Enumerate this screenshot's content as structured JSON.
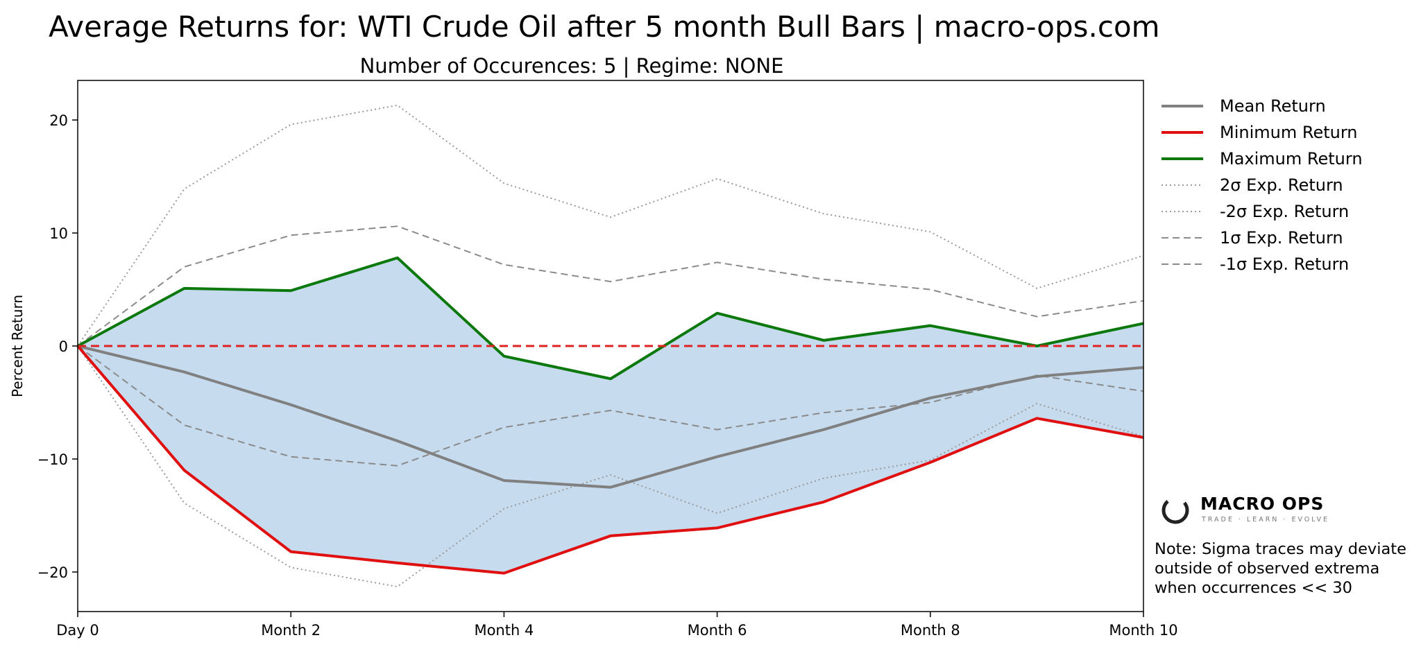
{
  "chart_data": {
    "type": "line",
    "title": "Average Returns for: WTI Crude Oil after 5 month Bull Bars | macro-ops.com",
    "subtitle": "Number of Occurences: 5 | Regime: NONE",
    "ylabel": "Percent Return",
    "xlabel": "",
    "x": [
      0,
      1,
      2,
      3,
      4,
      5,
      6,
      7,
      8,
      9,
      10
    ],
    "xticks": [
      0,
      2,
      4,
      6,
      8,
      10
    ],
    "xticklabels": [
      "Day 0",
      "Month 2",
      "Month 4",
      "Month 6",
      "Month 8",
      "Month 10"
    ],
    "ylim": [
      -23.5,
      23.5
    ],
    "yticks": [
      -20,
      -10,
      0,
      10,
      20
    ],
    "yticklabels": [
      "−20",
      "−10",
      "0",
      "10",
      "20"
    ],
    "grid": false,
    "legend_position": "outside-right",
    "fill_between": {
      "lower": "Minimum Return",
      "upper": "Maximum Return",
      "color": "#c6dbee"
    },
    "zero_line": {
      "y": 0,
      "color": "#dd2222",
      "style": "dashed"
    },
    "series": [
      {
        "name": "Mean Return",
        "color": "#808080",
        "style": "solid",
        "width": 4,
        "values": [
          0,
          -2.3,
          -5.2,
          -8.4,
          -11.9,
          -12.5,
          -9.8,
          -7.4,
          -4.6,
          -2.7,
          -1.9
        ]
      },
      {
        "name": "Minimum Return",
        "color": "#e01010",
        "style": "solid",
        "width": 4,
        "values": [
          0,
          -11.0,
          -18.2,
          -19.2,
          -20.1,
          -16.8,
          -16.1,
          -13.8,
          -10.3,
          -6.4,
          -8.1
        ]
      },
      {
        "name": "Maximum Return",
        "color": "#0a780a",
        "style": "solid",
        "width": 4,
        "values": [
          0,
          5.1,
          4.9,
          7.8,
          -0.9,
          -2.9,
          2.9,
          0.5,
          1.8,
          0.0,
          2.0
        ]
      },
      {
        "name": "2σ Exp. Return",
        "color": "#999999",
        "style": "dotted",
        "width": 2,
        "values": [
          0,
          13.9,
          19.6,
          21.3,
          14.4,
          11.4,
          14.8,
          11.7,
          10.1,
          5.1,
          8.0
        ]
      },
      {
        "name": "-2σ Exp. Return",
        "color": "#999999",
        "style": "dotted",
        "width": 2,
        "values": [
          0,
          -13.9,
          -19.6,
          -21.3,
          -14.4,
          -11.4,
          -14.8,
          -11.7,
          -10.1,
          -5.1,
          -8.0
        ]
      },
      {
        "name": "1σ Exp. Return",
        "color": "#8a8a8a",
        "style": "dashed",
        "width": 2,
        "values": [
          0,
          7.0,
          9.8,
          10.6,
          7.2,
          5.7,
          7.4,
          5.9,
          5.0,
          2.6,
          4.0
        ]
      },
      {
        "name": "-1σ Exp. Return",
        "color": "#8a8a8a",
        "style": "dashed",
        "width": 2,
        "values": [
          0,
          -7.0,
          -9.8,
          -10.6,
          -7.2,
          -5.7,
          -7.4,
          -5.9,
          -5.0,
          -2.6,
          -4.0
        ]
      }
    ]
  },
  "logo": {
    "name": "MACRO OPS",
    "tagline": "TRADE · LEARN · EVOLVE",
    "icon": "ring-logo-icon"
  },
  "note": {
    "line1": "Note: Sigma traces may deviate",
    "line2": "outside of observed extrema",
    "line3": "when occurrences << 30"
  }
}
